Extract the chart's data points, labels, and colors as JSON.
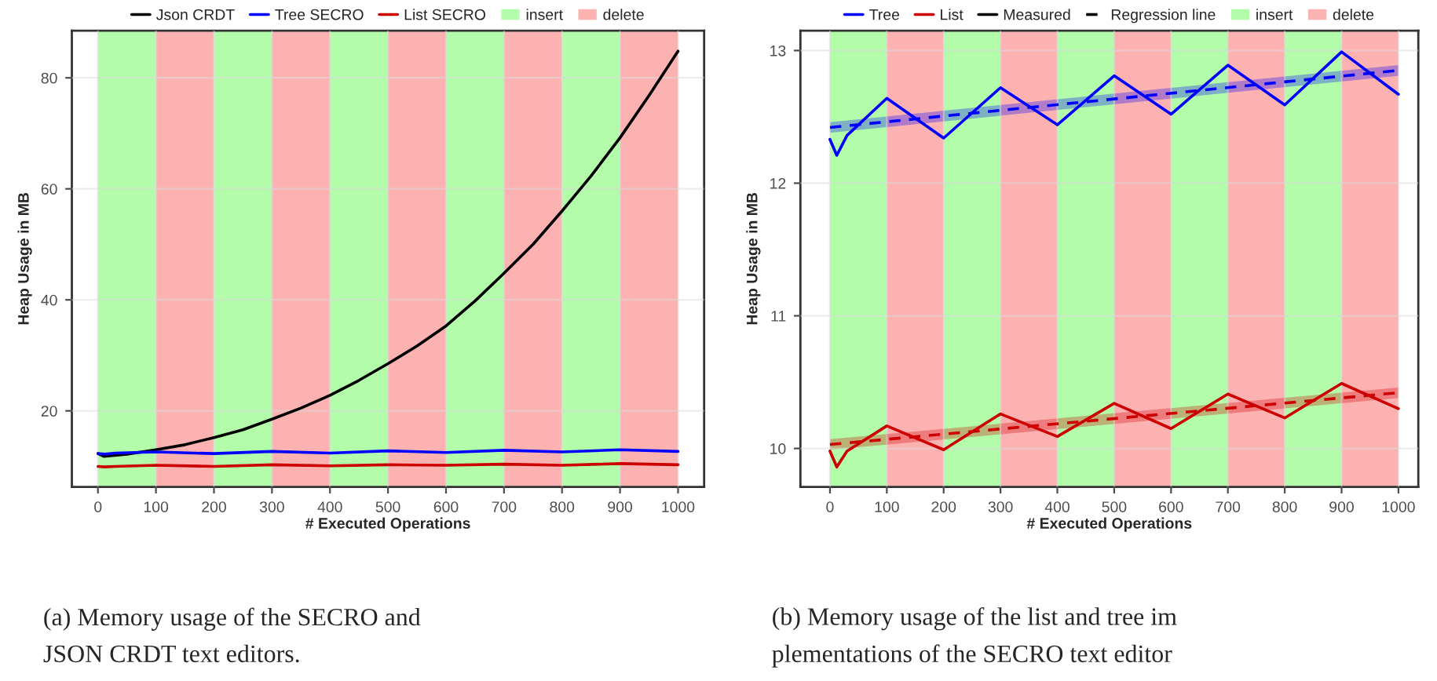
{
  "chart_data": [
    {
      "type": "line",
      "xlabel": "# Executed Operations",
      "ylabel": "Heap Usage in MB",
      "xlim": [
        -45,
        1045
      ],
      "ylim": [
        6.3,
        88.5
      ],
      "xticks": [
        0,
        100,
        200,
        300,
        400,
        500,
        600,
        700,
        800,
        900,
        1000
      ],
      "yticks": [
        20,
        40,
        60,
        80
      ],
      "grid": true,
      "legend": "top",
      "line_style": "solid",
      "marker": "none",
      "series": [
        {
          "name": "Json CRDT",
          "color": "#000000",
          "x": [
            0,
            10,
            50,
            100,
            150,
            200,
            250,
            300,
            350,
            400,
            450,
            500,
            550,
            600,
            650,
            700,
            750,
            800,
            850,
            900,
            950,
            1000
          ],
          "values": [
            12.3,
            11.8,
            12.2,
            13,
            13.9,
            15.2,
            16.6,
            18.5,
            20.5,
            22.8,
            25.5,
            28.5,
            31.7,
            35.3,
            39.8,
            44.8,
            50,
            56,
            62.3,
            69.2,
            76.8,
            84.8
          ]
        },
        {
          "name": "Tree SECRO",
          "color": "#0000ff",
          "x": [
            0,
            12,
            30,
            100,
            200,
            300,
            400,
            500,
            600,
            700,
            800,
            900,
            1000
          ],
          "values": [
            12.3,
            12.2,
            12.4,
            12.6,
            12.3,
            12.7,
            12.4,
            12.8,
            12.5,
            12.9,
            12.6,
            13,
            12.7
          ]
        },
        {
          "name": "List SECRO",
          "color": "#cc0000",
          "x": [
            0,
            12,
            30,
            100,
            200,
            300,
            400,
            500,
            600,
            700,
            800,
            900,
            1000
          ],
          "values": [
            10,
            9.9,
            10,
            10.2,
            10,
            10.3,
            10.1,
            10.3,
            10.2,
            10.4,
            10.2,
            10.5,
            10.3
          ]
        }
      ],
      "bands": [
        {
          "axis": "x",
          "from": 0,
          "to": 100,
          "label": "insert",
          "color": "#b3fcaa"
        },
        {
          "axis": "x",
          "from": 100,
          "to": 200,
          "label": "delete",
          "color": "#fdb2b2"
        },
        {
          "axis": "x",
          "from": 200,
          "to": 300,
          "color": "#b3fcaa"
        },
        {
          "axis": "x",
          "from": 300,
          "to": 400,
          "color": "#fdb2b2"
        },
        {
          "axis": "x",
          "from": 400,
          "to": 500,
          "color": "#b3fcaa"
        },
        {
          "axis": "x",
          "from": 500,
          "to": 600,
          "color": "#fdb2b2"
        },
        {
          "axis": "x",
          "from": 600,
          "to": 700,
          "color": "#b3fcaa"
        },
        {
          "axis": "x",
          "from": 700,
          "to": 800,
          "color": "#fdb2b2"
        },
        {
          "axis": "x",
          "from": 800,
          "to": 900,
          "color": "#b3fcaa"
        },
        {
          "axis": "x",
          "from": 900,
          "to": 1000,
          "color": "#fdb2b2"
        }
      ],
      "annotations": [
        "(a) Memory usage of the SECRO and\nJSON CRDT text editors."
      ]
    },
    {
      "type": "line",
      "xlabel": "# Executed Operations",
      "ylabel": "Heap Usage in MB",
      "xlim": [
        -52,
        1035
      ],
      "ylim": [
        9.71,
        13.15
      ],
      "xticks": [
        0,
        100,
        200,
        300,
        400,
        500,
        600,
        700,
        800,
        900,
        1000
      ],
      "yticks": [
        10,
        11,
        12,
        13
      ],
      "grid": true,
      "legend": "top",
      "marker": "none",
      "series": [
        {
          "name": "Tree",
          "color": "#0000ff",
          "line_style": "solid",
          "x": [
            0,
            12,
            30,
            100,
            200,
            300,
            400,
            500,
            600,
            700,
            800,
            900,
            1000
          ],
          "values": [
            12.33,
            12.21,
            12.36,
            12.64,
            12.34,
            12.72,
            12.44,
            12.81,
            12.52,
            12.89,
            12.59,
            12.99,
            12.67
          ]
        },
        {
          "name": "List",
          "color": "#cc0000",
          "line_style": "solid",
          "x": [
            0,
            12,
            30,
            100,
            200,
            300,
            400,
            500,
            600,
            700,
            800,
            900,
            1000
          ],
          "values": [
            9.98,
            9.86,
            9.98,
            10.17,
            9.99,
            10.26,
            10.09,
            10.34,
            10.15,
            10.41,
            10.23,
            10.49,
            10.3
          ]
        },
        {
          "color": "#0000ff",
          "line_style": "dashed",
          "x": [
            0,
            1000
          ],
          "values": [
            12.42,
            12.85
          ],
          "lower": [
            12.38,
            12.81
          ],
          "upper": [
            12.46,
            12.89
          ]
        },
        {
          "color": "#cc0000",
          "line_style": "dashed",
          "x": [
            0,
            1000
          ],
          "values": [
            10.03,
            10.42
          ],
          "lower": [
            9.99,
            10.38
          ],
          "upper": [
            10.07,
            10.46
          ]
        },
        {
          "name": "Measured",
          "color": "#000000",
          "line_style": "solid"
        },
        {
          "name": "Regression line",
          "color": "#000000",
          "line_style": "dashed"
        }
      ],
      "bands": [
        {
          "axis": "x",
          "from": 0,
          "to": 100,
          "label": "insert",
          "color": "#b3fcaa"
        },
        {
          "axis": "x",
          "from": 100,
          "to": 200,
          "label": "delete",
          "color": "#fdb2b2"
        },
        {
          "axis": "x",
          "from": 200,
          "to": 300,
          "color": "#b3fcaa"
        },
        {
          "axis": "x",
          "from": 300,
          "to": 400,
          "color": "#fdb2b2"
        },
        {
          "axis": "x",
          "from": 400,
          "to": 500,
          "color": "#b3fcaa"
        },
        {
          "axis": "x",
          "from": 500,
          "to": 600,
          "color": "#fdb2b2"
        },
        {
          "axis": "x",
          "from": 600,
          "to": 700,
          "color": "#b3fcaa"
        },
        {
          "axis": "x",
          "from": 700,
          "to": 800,
          "color": "#fdb2b2"
        },
        {
          "axis": "x",
          "from": 800,
          "to": 900,
          "color": "#b3fcaa"
        },
        {
          "axis": "x",
          "from": 900,
          "to": 1000,
          "color": "#fdb2b2"
        }
      ],
      "annotations": [
        "(b) Memory usage of the list and tree im\nplementations of the SECRO text editor"
      ]
    }
  ]
}
